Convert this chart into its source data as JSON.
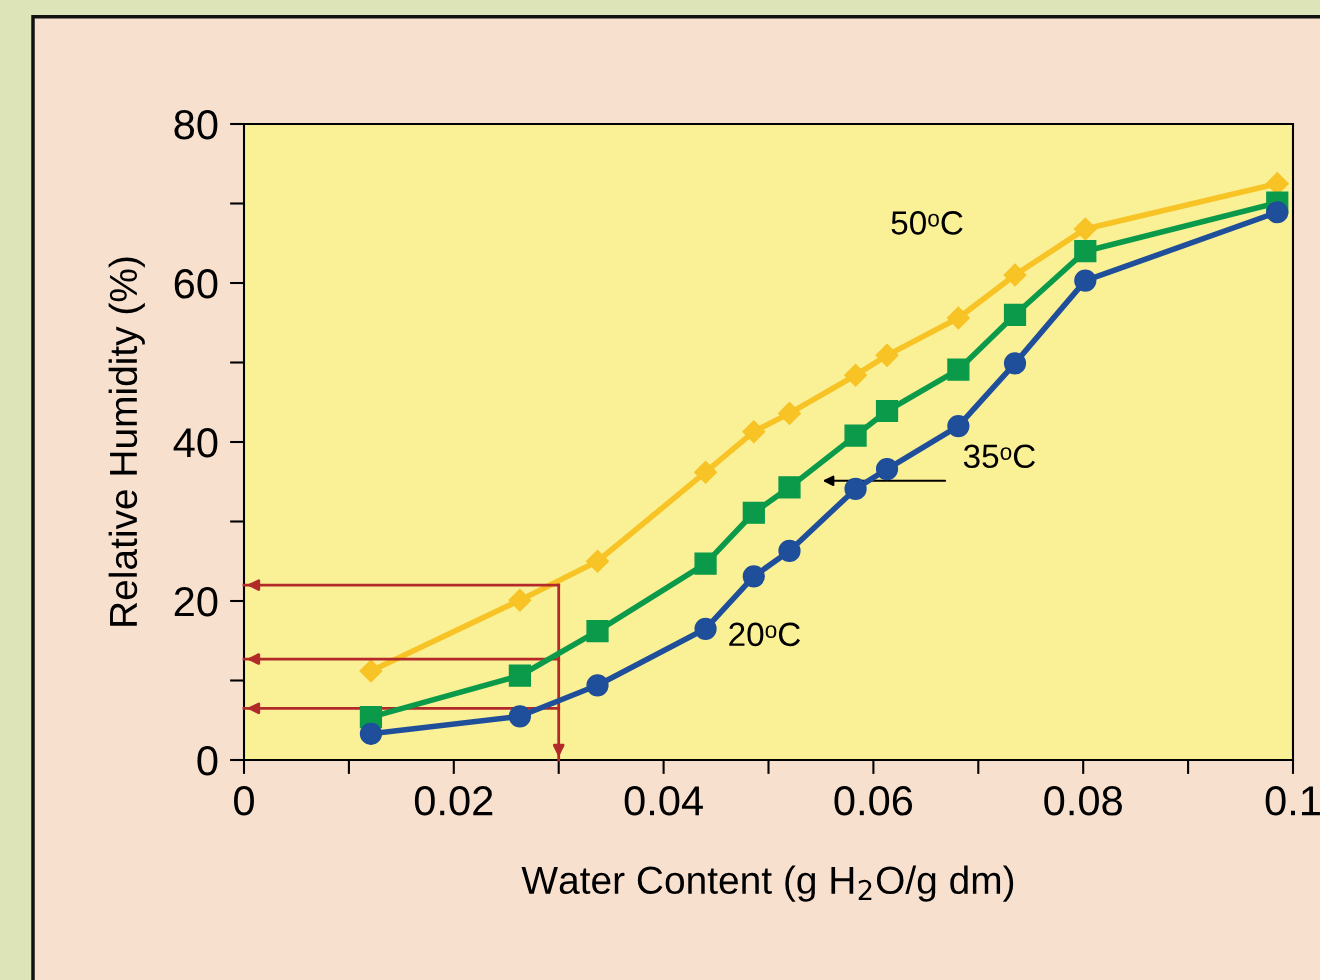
{
  "chart_data": {
    "type": "line",
    "xlabel": "Water Content (g H$_{2}$O/g dm)",
    "ylabel": "Relative Humidity (%)",
    "x": [
      0.0121,
      0.0263,
      0.0337,
      0.044,
      0.0486,
      0.052,
      0.0583,
      0.0613,
      0.0681,
      0.0735,
      0.0802,
      0.0985
    ],
    "series": [
      {
        "color": "#1f4e9a",
        "marker": "circle",
        "values": [
          3.3,
          5.5,
          9.4,
          16.5,
          23.1,
          26.3,
          34.1,
          36.6,
          42.0,
          49.9,
          60.3,
          68.9
        ]
      },
      {
        "color": "#0a9a4a",
        "marker": "square",
        "values": [
          5.4,
          10.6,
          16.2,
          24.7,
          31.1,
          34.3,
          40.8,
          43.9,
          49.1,
          56.0,
          64.0,
          70.1
        ]
      },
      {
        "color": "#f7c325",
        "marker": "diamond",
        "values": [
          11.2,
          20.1,
          25.0,
          36.2,
          41.3,
          43.6,
          48.4,
          50.9,
          55.6,
          61.0,
          66.8,
          72.5
        ]
      }
    ],
    "xlim": [
      0,
      0.1
    ],
    "ylim": [
      0,
      80
    ],
    "xticks": [
      0,
      {
        "value": 0.01,
        "label": null
      },
      0.02,
      {
        "value": 0.03,
        "label": null
      },
      0.04,
      {
        "value": 0.05,
        "label": null
      },
      0.06,
      {
        "value": 0.07,
        "label": null
      },
      0.08,
      {
        "value": 0.09,
        "label": null
      },
      0.1
    ],
    "yticks": [
      0,
      {
        "value": 10,
        "label": null
      },
      20,
      {
        "value": 30,
        "label": null
      },
      40,
      {
        "value": 50,
        "label": null
      },
      60,
      {
        "value": 70,
        "label": null
      },
      80
    ],
    "ref_lines": [
      {
        "axis": "x",
        "value": 0.03,
        "color": "#b22a2a"
      },
      {
        "axis": "y",
        "value": 22.0,
        "color": "#b22a2a"
      },
      {
        "axis": "y",
        "value": 12.7,
        "color": "#b22a2a"
      },
      {
        "axis": "y",
        "value": 6.5,
        "color": "#b22a2a"
      }
    ],
    "annotations": [
      "50ᵒC",
      "35ᵒC",
      "20ᵒC"
    ],
    "grid": false,
    "line_style": "solid"
  }
}
